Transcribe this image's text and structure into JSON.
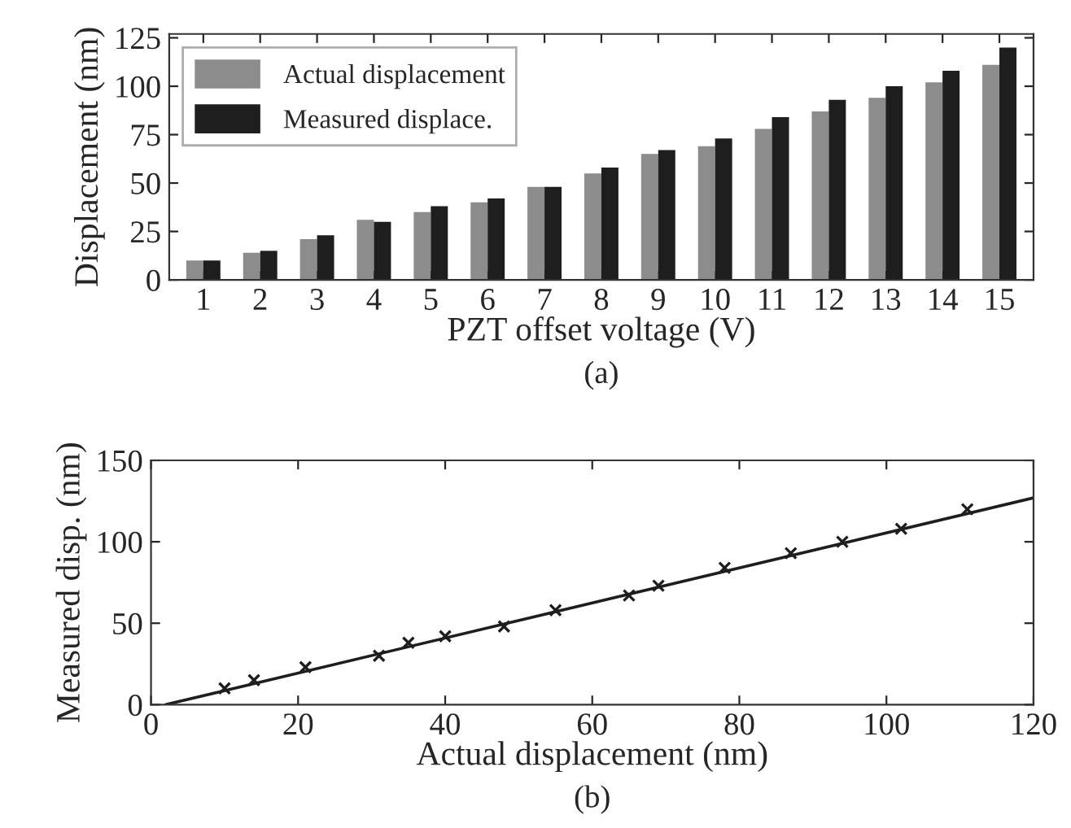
{
  "chart_data": [
    {
      "type": "bar",
      "xlabel": "PZT offset voltage (V)",
      "ylabel": "Displacement (nm)",
      "annotations": [
        "(a)"
      ],
      "categories": [
        "1",
        "2",
        "3",
        "4",
        "5",
        "6",
        "7",
        "8",
        "9",
        "10",
        "11",
        "12",
        "13",
        "14",
        "15"
      ],
      "series": [
        {
          "name": "Actual displacement",
          "color": "#8c8c8c",
          "values": [
            10,
            14,
            21,
            31,
            35,
            40,
            48,
            55,
            65,
            69,
            78,
            87,
            94,
            102,
            111
          ]
        },
        {
          "name": "Measured displace.",
          "color": "#1e1e1e",
          "values": [
            10,
            15,
            23,
            30,
            38,
            42,
            48,
            58,
            67,
            73,
            84,
            93,
            100,
            108,
            120
          ]
        }
      ],
      "ylim": [
        0,
        127
      ],
      "yticks": [
        0,
        25,
        50,
        75,
        100,
        125
      ],
      "legend": "top left",
      "grid": false
    },
    {
      "type": "scatter",
      "xlabel": "Actual displacement (nm)",
      "ylabel": "Measured disp. (nm)",
      "annotations": [
        "(b)"
      ],
      "series": [
        {
          "type": "scatter",
          "marker": "cross",
          "color": "#1e1e1e",
          "x": [
            10,
            14,
            21,
            31,
            35,
            40,
            48,
            55,
            65,
            69,
            78,
            87,
            94,
            102,
            111
          ],
          "values": [
            10,
            15,
            23,
            30,
            38,
            42,
            48,
            58,
            67,
            73,
            84,
            93,
            100,
            108,
            120
          ]
        },
        {
          "type": "line",
          "color": "#1e1e1e",
          "x": [
            2,
            120
          ],
          "values": [
            0,
            127
          ]
        }
      ],
      "xlim": [
        0,
        120
      ],
      "xticks": [
        0,
        20,
        40,
        60,
        80,
        100,
        120
      ],
      "ylim": [
        0,
        150
      ],
      "yticks": [
        0,
        50,
        100,
        150
      ],
      "grid": false
    }
  ]
}
